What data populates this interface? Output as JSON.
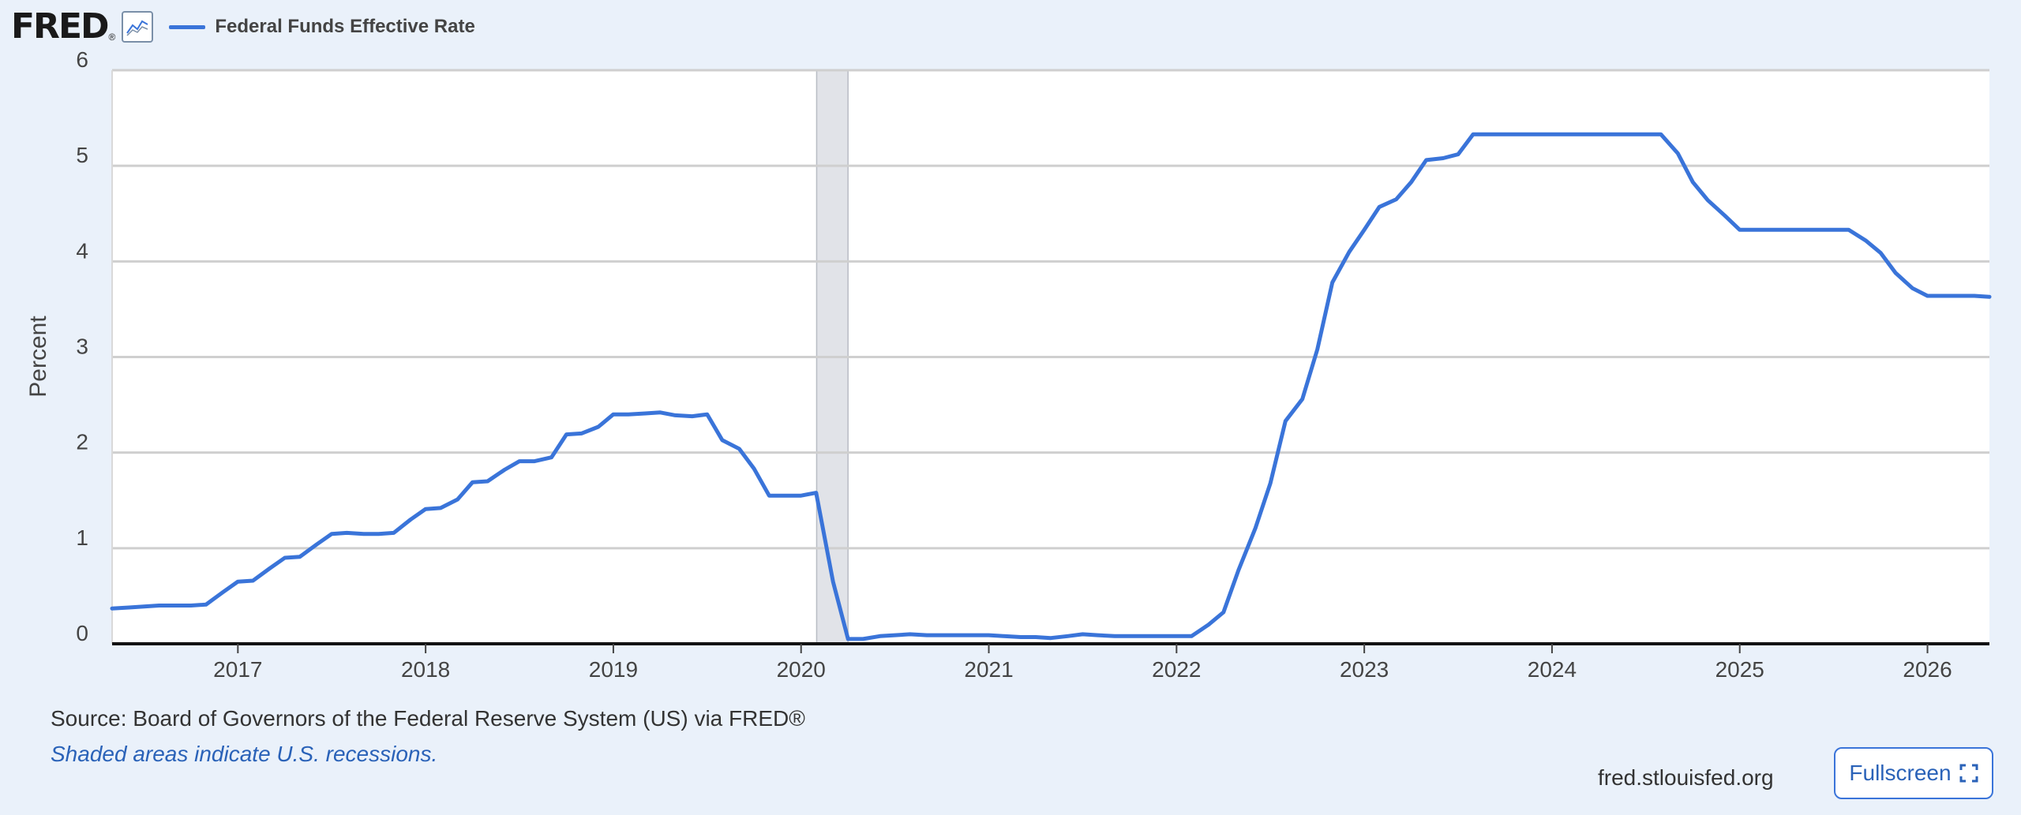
{
  "header": {
    "logo_text": "FRED",
    "logo_mark": "®",
    "graph_icon": "line-graph-icon",
    "legend_label": "Federal Funds Effective Rate"
  },
  "footer": {
    "source": "Source: Board of Governors of the Federal Reserve System (US) via FRED®",
    "recession_note": "Shaded areas indicate U.S. recessions.",
    "site_url": "fred.stlouisfed.org",
    "fullscreen_label": "Fullscreen",
    "fullscreen_icon": "fullscreen-icon"
  },
  "colors": {
    "series": "#3a74d9",
    "recession": "#e1e3e8",
    "grid": "#cfcfcf",
    "background": "#eaf1fa"
  },
  "chart_data": {
    "type": "line",
    "title": "",
    "xlabel": "",
    "ylabel": "Percent",
    "xlim": [
      2016.33,
      2026.33
    ],
    "ylim": [
      0,
      6
    ],
    "y_ticks": [
      0,
      1,
      2,
      3,
      4,
      5,
      6
    ],
    "x_ticks": [
      2017,
      2018,
      2019,
      2020,
      2021,
      2022,
      2023,
      2024,
      2025,
      2026
    ],
    "grid": true,
    "recessions": [
      [
        2020.083,
        2020.25
      ]
    ],
    "series": [
      {
        "name": "Federal Funds Effective Rate",
        "points": [
          [
            2016.33,
            0.37
          ],
          [
            2016.42,
            0.38
          ],
          [
            2016.5,
            0.39
          ],
          [
            2016.58,
            0.4
          ],
          [
            2016.67,
            0.4
          ],
          [
            2016.75,
            0.4
          ],
          [
            2016.83,
            0.41
          ],
          [
            2016.92,
            0.54
          ],
          [
            2017.0,
            0.65
          ],
          [
            2017.08,
            0.66
          ],
          [
            2017.17,
            0.79
          ],
          [
            2017.25,
            0.9
          ],
          [
            2017.33,
            0.91
          ],
          [
            2017.42,
            1.04
          ],
          [
            2017.5,
            1.15
          ],
          [
            2017.58,
            1.16
          ],
          [
            2017.67,
            1.15
          ],
          [
            2017.75,
            1.15
          ],
          [
            2017.83,
            1.16
          ],
          [
            2017.92,
            1.3
          ],
          [
            2018.0,
            1.41
          ],
          [
            2018.08,
            1.42
          ],
          [
            2018.17,
            1.51
          ],
          [
            2018.25,
            1.69
          ],
          [
            2018.33,
            1.7
          ],
          [
            2018.42,
            1.82
          ],
          [
            2018.5,
            1.91
          ],
          [
            2018.58,
            1.91
          ],
          [
            2018.67,
            1.95
          ],
          [
            2018.75,
            2.19
          ],
          [
            2018.83,
            2.2
          ],
          [
            2018.92,
            2.27
          ],
          [
            2019.0,
            2.4
          ],
          [
            2019.08,
            2.4
          ],
          [
            2019.17,
            2.41
          ],
          [
            2019.25,
            2.42
          ],
          [
            2019.33,
            2.39
          ],
          [
            2019.42,
            2.38
          ],
          [
            2019.5,
            2.4
          ],
          [
            2019.58,
            2.13
          ],
          [
            2019.67,
            2.04
          ],
          [
            2019.75,
            1.83
          ],
          [
            2019.83,
            1.55
          ],
          [
            2019.92,
            1.55
          ],
          [
            2020.0,
            1.55
          ],
          [
            2020.08,
            1.58
          ],
          [
            2020.17,
            0.65
          ],
          [
            2020.25,
            0.05
          ],
          [
            2020.33,
            0.05
          ],
          [
            2020.42,
            0.08
          ],
          [
            2020.5,
            0.09
          ],
          [
            2020.58,
            0.1
          ],
          [
            2020.67,
            0.09
          ],
          [
            2020.75,
            0.09
          ],
          [
            2020.83,
            0.09
          ],
          [
            2020.92,
            0.09
          ],
          [
            2021.0,
            0.09
          ],
          [
            2021.08,
            0.08
          ],
          [
            2021.17,
            0.07
          ],
          [
            2021.25,
            0.07
          ],
          [
            2021.33,
            0.06
          ],
          [
            2021.42,
            0.08
          ],
          [
            2021.5,
            0.1
          ],
          [
            2021.58,
            0.09
          ],
          [
            2021.67,
            0.08
          ],
          [
            2021.75,
            0.08
          ],
          [
            2021.83,
            0.08
          ],
          [
            2021.92,
            0.08
          ],
          [
            2022.0,
            0.08
          ],
          [
            2022.08,
            0.08
          ],
          [
            2022.17,
            0.2
          ],
          [
            2022.25,
            0.33
          ],
          [
            2022.33,
            0.77
          ],
          [
            2022.42,
            1.21
          ],
          [
            2022.5,
            1.68
          ],
          [
            2022.58,
            2.33
          ],
          [
            2022.67,
            2.56
          ],
          [
            2022.75,
            3.08
          ],
          [
            2022.83,
            3.78
          ],
          [
            2022.92,
            4.1
          ],
          [
            2023.0,
            4.33
          ],
          [
            2023.08,
            4.57
          ],
          [
            2023.17,
            4.65
          ],
          [
            2023.25,
            4.83
          ],
          [
            2023.33,
            5.06
          ],
          [
            2023.42,
            5.08
          ],
          [
            2023.5,
            5.12
          ],
          [
            2023.58,
            5.33
          ],
          [
            2023.67,
            5.33
          ],
          [
            2023.75,
            5.33
          ],
          [
            2023.83,
            5.33
          ],
          [
            2023.92,
            5.33
          ],
          [
            2024.0,
            5.33
          ],
          [
            2024.08,
            5.33
          ],
          [
            2024.17,
            5.33
          ],
          [
            2024.25,
            5.33
          ],
          [
            2024.33,
            5.33
          ],
          [
            2024.42,
            5.33
          ],
          [
            2024.5,
            5.33
          ],
          [
            2024.58,
            5.33
          ],
          [
            2024.67,
            5.13
          ],
          [
            2024.75,
            4.83
          ],
          [
            2024.83,
            4.64
          ],
          [
            2024.92,
            4.48
          ],
          [
            2025.0,
            4.33
          ],
          [
            2025.08,
            4.33
          ],
          [
            2025.17,
            4.33
          ],
          [
            2025.25,
            4.33
          ],
          [
            2025.33,
            4.33
          ],
          [
            2025.42,
            4.33
          ],
          [
            2025.5,
            4.33
          ],
          [
            2025.58,
            4.33
          ],
          [
            2025.67,
            4.22
          ],
          [
            2025.75,
            4.09
          ],
          [
            2025.83,
            3.88
          ],
          [
            2025.92,
            3.72
          ],
          [
            2026.0,
            3.64
          ],
          [
            2026.08,
            3.64
          ],
          [
            2026.17,
            3.64
          ],
          [
            2026.25,
            3.64
          ],
          [
            2026.33,
            3.63
          ]
        ]
      }
    ]
  }
}
